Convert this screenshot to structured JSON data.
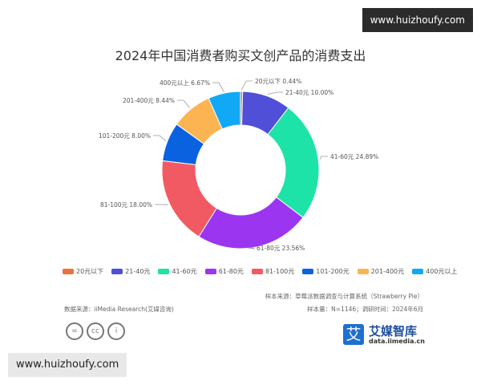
{
  "watermark": "www.huizhoufy.com",
  "chart_data": {
    "type": "pie",
    "donut": true,
    "title": "2024年中国消费者购买文创产品的消费支出",
    "categories": [
      "20元以下",
      "21-40元",
      "41-60元",
      "61-80元",
      "81-100元",
      "101-200元",
      "201-400元",
      "400元以上"
    ],
    "values": [
      0.44,
      10.0,
      24.89,
      23.56,
      18.0,
      8.0,
      8.44,
      6.67
    ],
    "labels": [
      "20元以下 0.44%",
      "21-40元 10.00%",
      "41-60元 24.89%",
      "61-80元 23.56%",
      "81-100元 18.00%",
      "101-200元 8.00%",
      "201-400元 8.44%",
      "400元以上 6.67%"
    ],
    "colors": [
      "#e8743b",
      "#4f4fd8",
      "#1de3a8",
      "#9b35f0",
      "#f25a63",
      "#0a62e0",
      "#fbb451",
      "#11a9f5"
    ],
    "legend_position": "bottom"
  },
  "footer": {
    "sample_source": "样本来源：草莓派数据调查与计算系统（Strawberry Pie）",
    "sample_size": "样本量：N=1146；调研时间：2024年6月",
    "data_source": "数据来源：iiMedia Research(艾媒咨询)",
    "cc_icons": [
      "=",
      "cc",
      "i"
    ]
  },
  "logo": {
    "mark": "艾",
    "name": "艾媒智库",
    "url": "data.iimedia.cn"
  }
}
